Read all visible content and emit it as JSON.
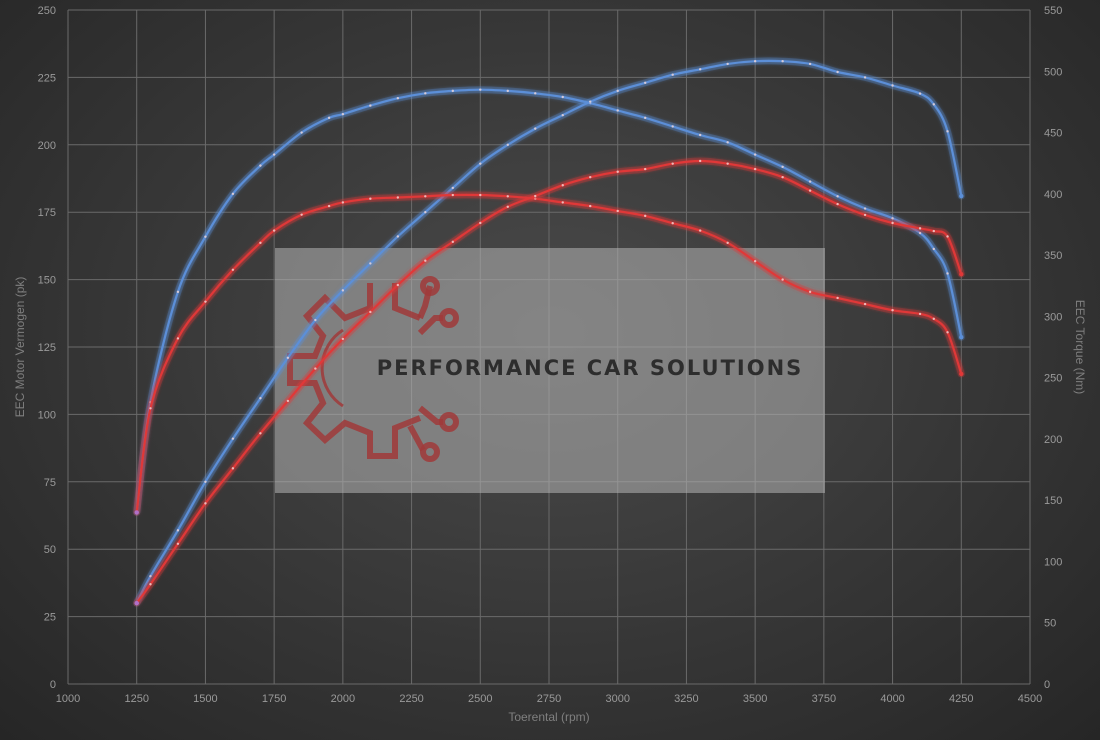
{
  "watermark": {
    "text": "PERFORMANCE CAR SOLUTIONS",
    "logo_icon": "gear-circuit-icon"
  },
  "colors": {
    "blue": "#5b8fd8",
    "red": "#e03838",
    "background": "#3a3a3a"
  },
  "chart_data": {
    "type": "line",
    "title": "",
    "xlabel": "Toerental (rpm)",
    "ylabel_left": "EEC Motor Vermogen (pk)",
    "ylabel_right": "EEC Torque (Nm)",
    "xlim": [
      1000,
      4500
    ],
    "xticks": [
      1000,
      1250,
      1500,
      1750,
      2000,
      2250,
      2500,
      2750,
      3000,
      3250,
      3500,
      3750,
      4000,
      4250,
      4500
    ],
    "ylim_left": [
      0,
      250
    ],
    "yticks_left": [
      0,
      25,
      50,
      75,
      100,
      125,
      150,
      175,
      200,
      225,
      250
    ],
    "ylim_right": [
      0,
      550
    ],
    "yticks_right": [
      0,
      50,
      100,
      150,
      200,
      250,
      300,
      350,
      400,
      450,
      500,
      550
    ],
    "grid": true,
    "series": [
      {
        "axis": "right",
        "color": "#5b8fd8",
        "x": [
          1250,
          1300,
          1400,
          1500,
          1600,
          1700,
          1750,
          1850,
          1950,
          2000,
          2100,
          2200,
          2300,
          2400,
          2500,
          2600,
          2700,
          2800,
          2900,
          3000,
          3100,
          3200,
          3300,
          3400,
          3500,
          3600,
          3700,
          3800,
          3900,
          4000,
          4100,
          4150,
          4200,
          4250
        ],
        "y": [
          140,
          230,
          320,
          365,
          400,
          423,
          432,
          450,
          462,
          465,
          472,
          478,
          482,
          484,
          485,
          484,
          482,
          479,
          474,
          468,
          462,
          455,
          448,
          442,
          432,
          422,
          410,
          398,
          388,
          380,
          368,
          355,
          335,
          283
        ]
      },
      {
        "axis": "left",
        "color": "#5b8fd8",
        "x": [
          1250,
          1300,
          1400,
          1500,
          1600,
          1700,
          1800,
          1900,
          2000,
          2100,
          2200,
          2300,
          2400,
          2500,
          2600,
          2700,
          2800,
          2900,
          3000,
          3100,
          3200,
          3300,
          3400,
          3500,
          3600,
          3700,
          3800,
          3900,
          4000,
          4100,
          4150,
          4200,
          4250
        ],
        "y": [
          30,
          40,
          57,
          75,
          91,
          106,
          121,
          135,
          146,
          156,
          166,
          175,
          184,
          193,
          200,
          206,
          211,
          216,
          220,
          223,
          226,
          228,
          230,
          231,
          231,
          230,
          227,
          225,
          222,
          219,
          215,
          205,
          181
        ]
      },
      {
        "axis": "right",
        "color": "#e03838",
        "x": [
          1250,
          1300,
          1400,
          1500,
          1600,
          1700,
          1750,
          1850,
          1950,
          2000,
          2100,
          2200,
          2300,
          2400,
          2500,
          2600,
          2700,
          2800,
          2900,
          3000,
          3100,
          3200,
          3300,
          3400,
          3500,
          3600,
          3700,
          3800,
          3900,
          4000,
          4100,
          4150,
          4200,
          4250
        ],
        "y": [
          140,
          225,
          282,
          312,
          338,
          360,
          370,
          383,
          390,
          393,
          396,
          397,
          398,
          399,
          399,
          398,
          396,
          393,
          390,
          386,
          382,
          376,
          370,
          360,
          345,
          330,
          320,
          315,
          310,
          305,
          302,
          298,
          287,
          253
        ]
      },
      {
        "axis": "left",
        "color": "#e03838",
        "x": [
          1250,
          1300,
          1400,
          1500,
          1600,
          1700,
          1800,
          1900,
          2000,
          2100,
          2200,
          2300,
          2400,
          2500,
          2600,
          2700,
          2800,
          2900,
          3000,
          3100,
          3200,
          3300,
          3400,
          3500,
          3600,
          3700,
          3800,
          3900,
          4000,
          4100,
          4150,
          4200,
          4250
        ],
        "y": [
          30,
          37,
          52,
          67,
          80,
          93,
          105,
          117,
          128,
          138,
          148,
          157,
          164,
          171,
          177,
          181,
          185,
          188,
          190,
          191,
          193,
          194,
          193,
          191,
          188,
          183,
          178,
          174,
          171,
          169,
          168,
          166,
          152
        ]
      }
    ]
  }
}
